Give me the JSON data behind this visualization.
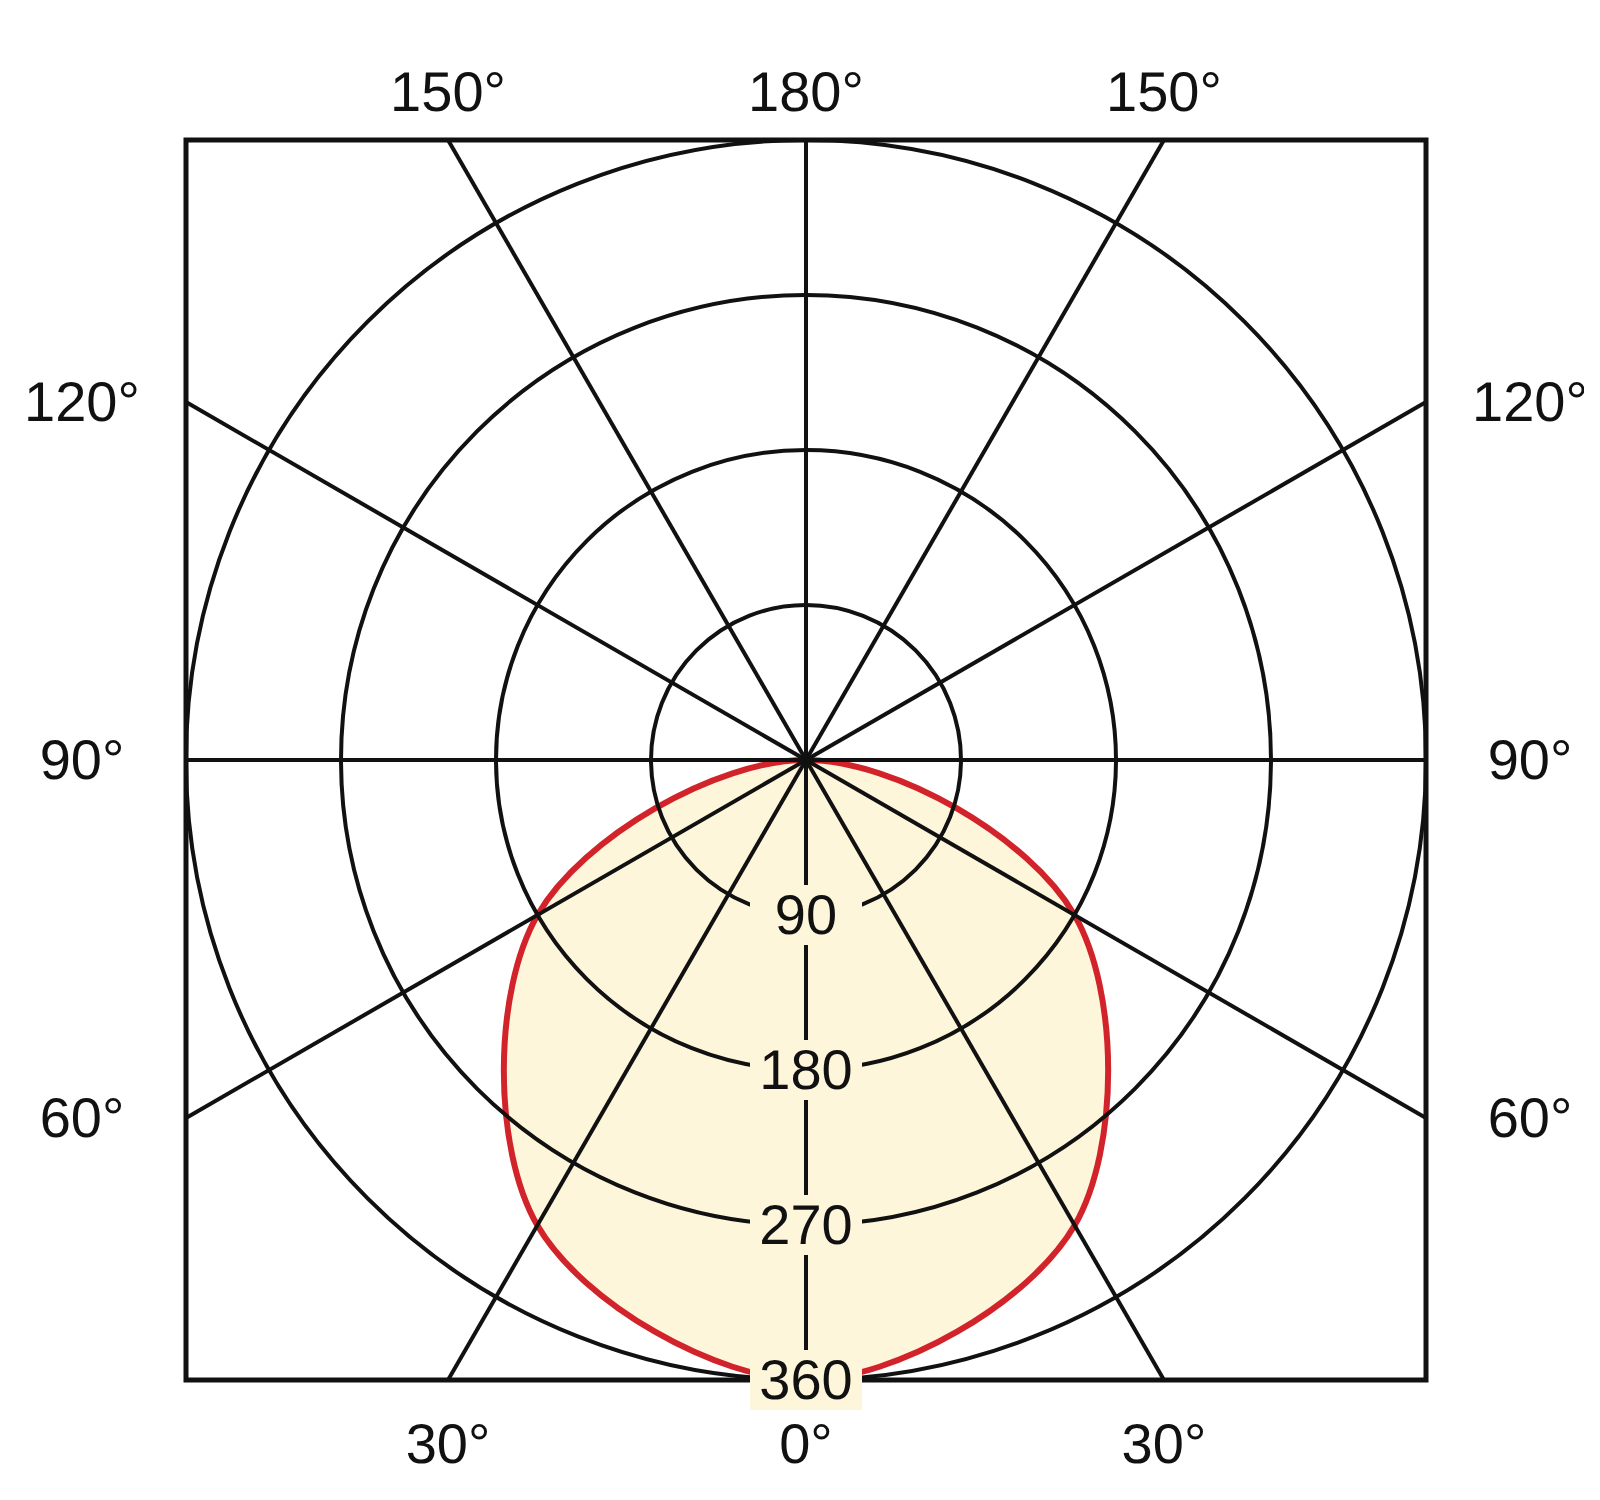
{
  "chart_data": {
    "type": "radar",
    "categories": [
      "180°",
      "150°",
      "120°",
      "90°",
      "60°",
      "30°",
      "0°",
      "30°",
      "60°",
      "90°",
      "120°",
      "150°"
    ],
    "series": [
      {
        "color": "#d2232a",
        "values": [
          0,
          0,
          0,
          0,
          180,
          312,
          360,
          312,
          180,
          0,
          0,
          0
        ]
      }
    ],
    "ylim": [
      0,
      360
    ],
    "yticks": [
      90,
      180,
      270,
      360
    ],
    "grid": true
  }
}
